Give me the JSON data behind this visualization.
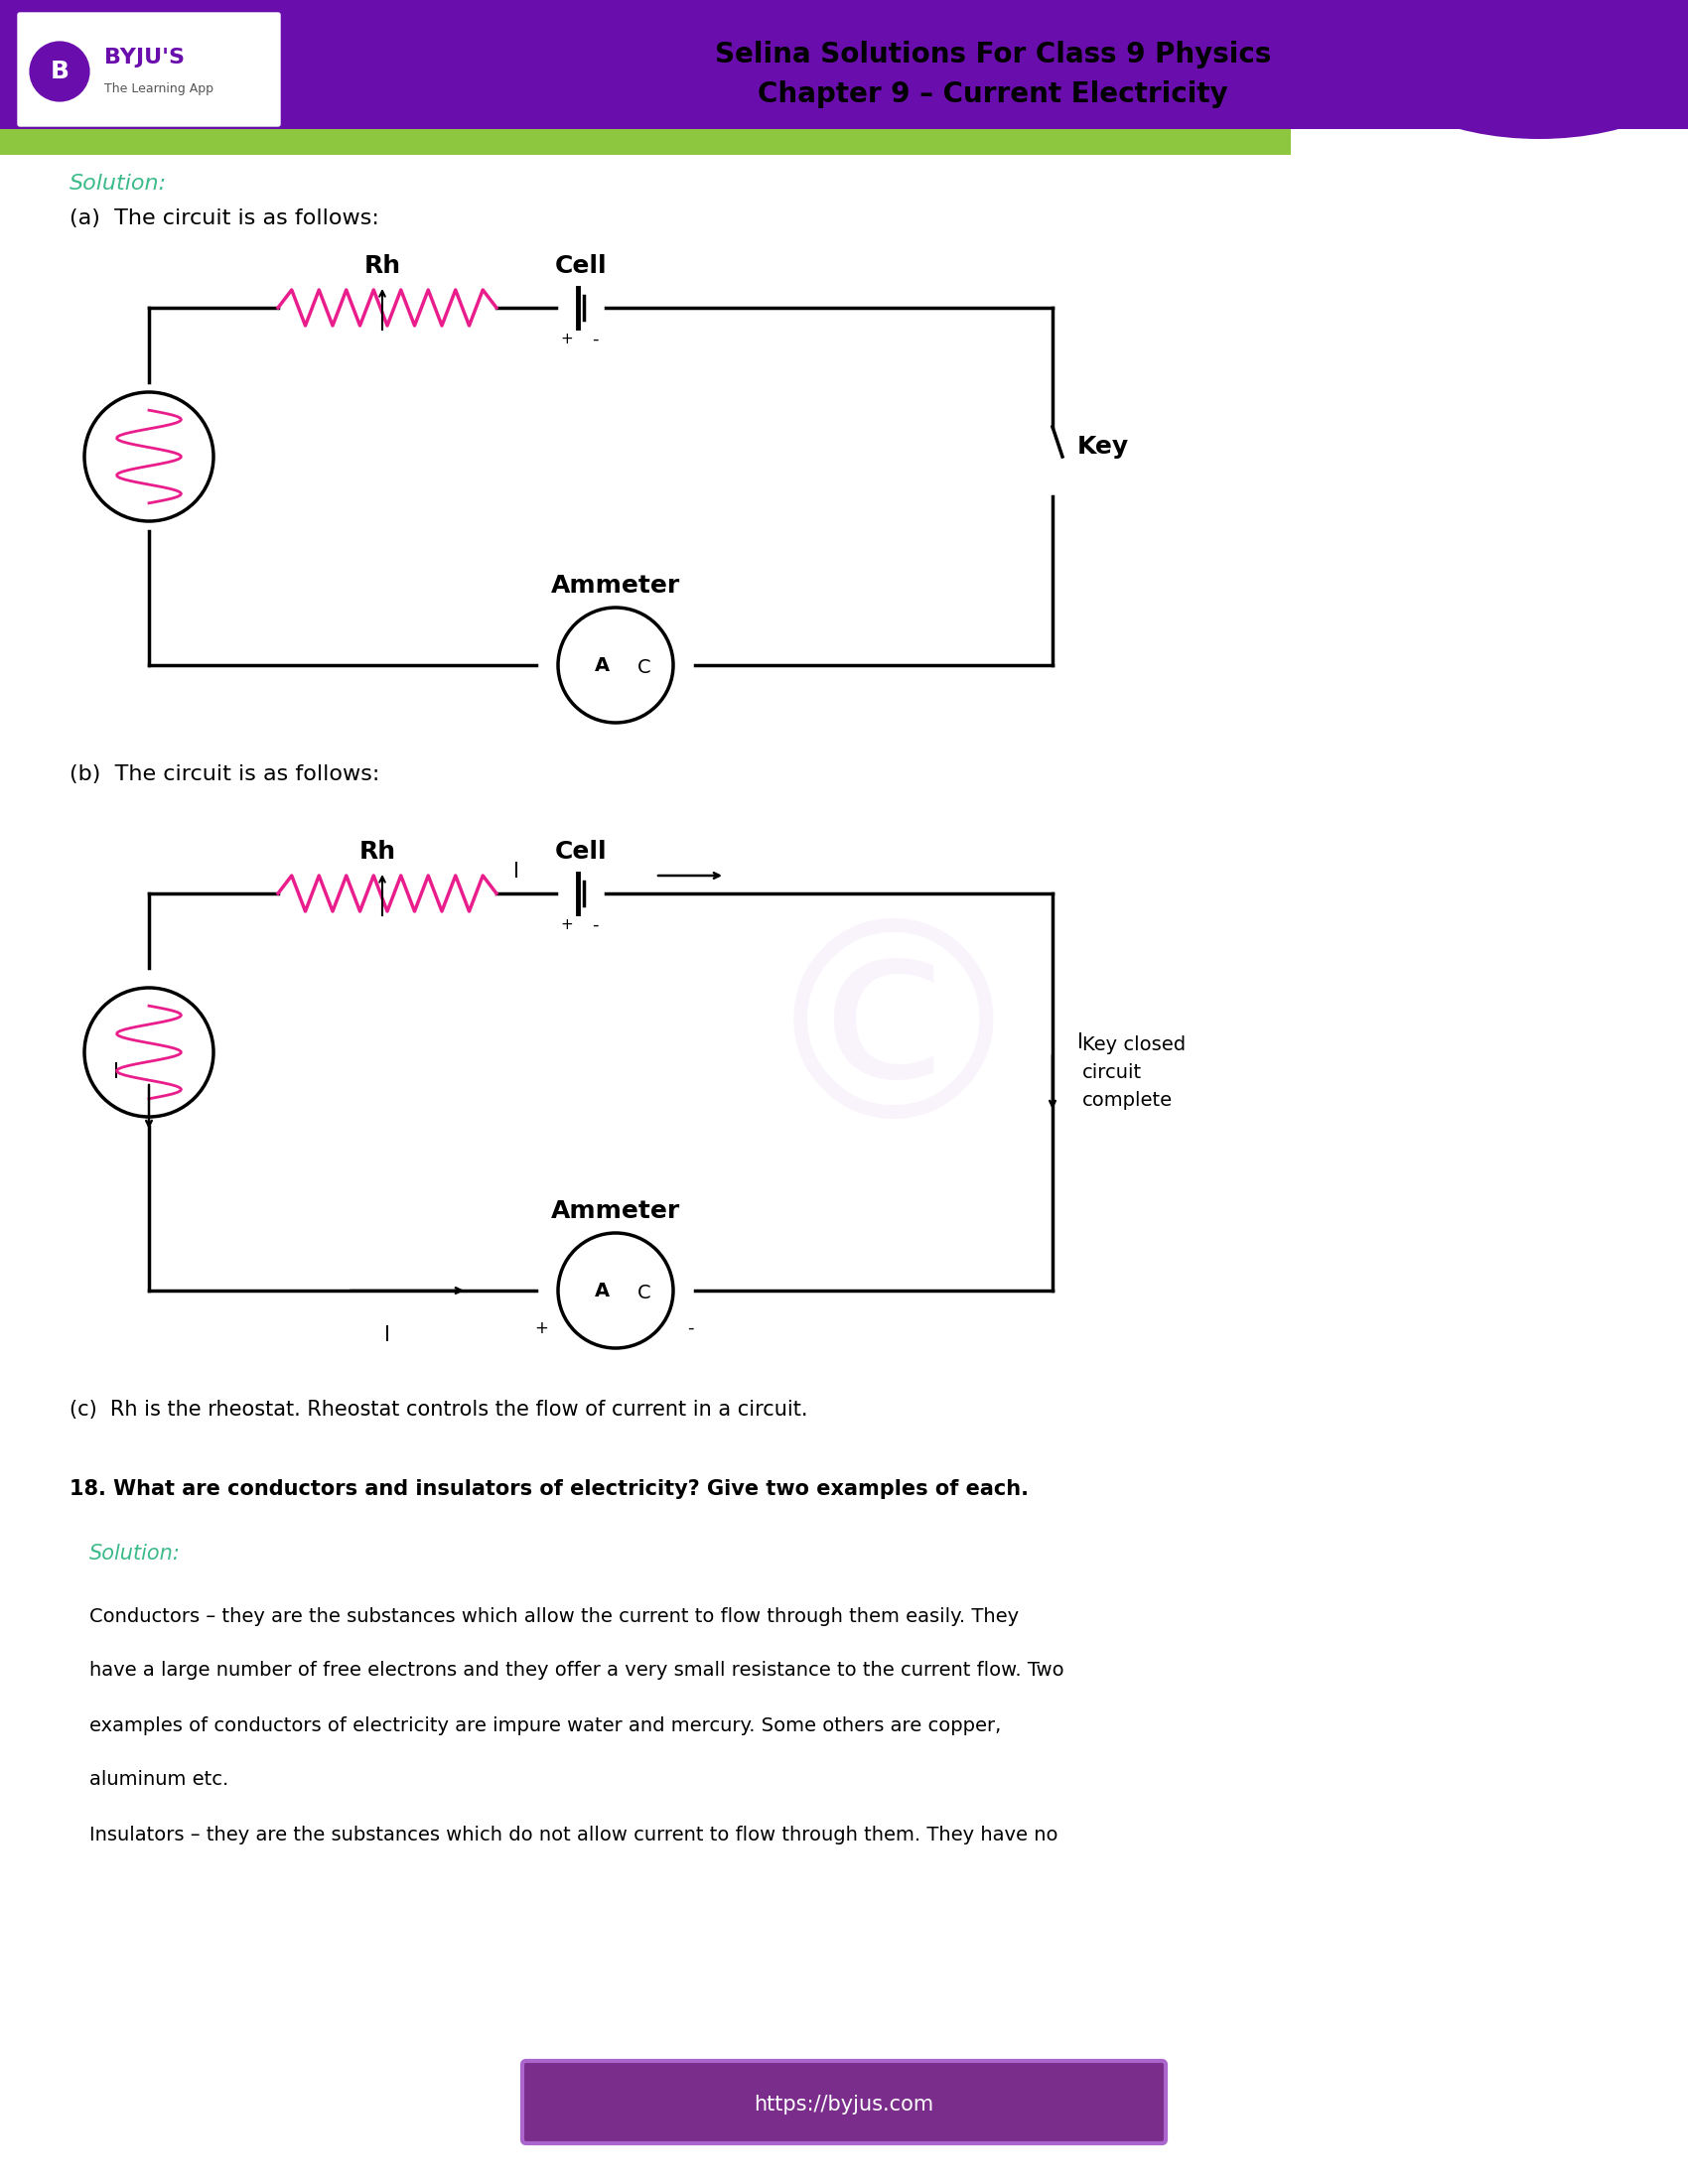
{
  "title_line1": "Selina Solutions For Class 9 Physics",
  "title_line2": "Chapter 9 – Current Electricity",
  "header_bar_color": "#6a0dad",
  "header_green_color": "#8dc63f",
  "bg_color": "#ffffff",
  "solution_color": "#3dba8a",
  "text_color": "#000000",
  "pink_color": "#e91e8c",
  "footer_url": "https://byjus.com",
  "footer_bg": "#7b2d8b"
}
